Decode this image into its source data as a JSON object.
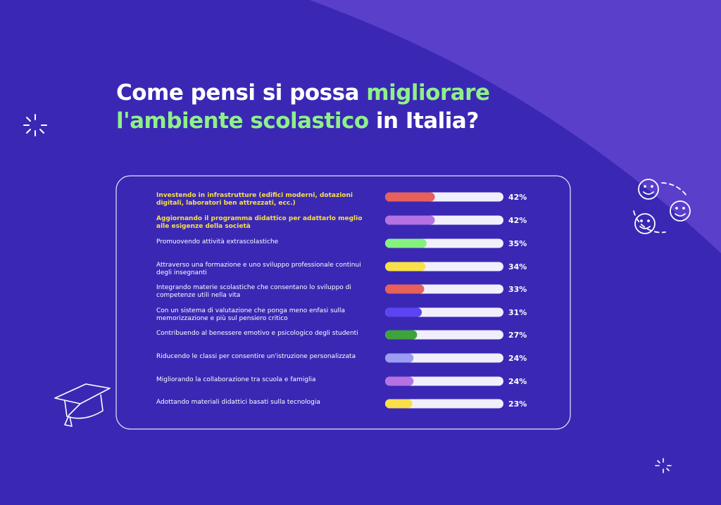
{
  "chart_data": {
    "type": "bar",
    "orientation": "horizontal",
    "title_parts": [
      {
        "text": "Come pensi si possa ",
        "color": "#ffffff"
      },
      {
        "text": "migliorare",
        "color": "#8ff08a"
      },
      {
        "text": "l'ambiente scolastico",
        "color": "#8ff08a"
      },
      {
        "text": " in Italia?",
        "color": "#ffffff"
      }
    ],
    "categories": [
      "Investendo in infrastrutture (edifici moderni, dotazioni digitali, laboratori ben attrezzati, ecc.)",
      "Aggiornando il programma didattico per adattarlo meglio alle esigenze della società",
      "Promuovendo attività extrascolastiche",
      "Attraverso una formazione e uno sviluppo professionale continui degli insegnanti",
      "Integrando materie scolastiche che consentano lo sviluppo di competenze utili nella vita",
      "Con un sistema di valutazione che ponga meno enfasi sulla memorizzazione e più sul pensiero critico",
      "Contribuendo al benessere emotivo e psicologico degli studenti",
      "Riducendo le classi per consentire un'istruzione personalizzata",
      "Migliorando la collaborazione tra scuola e famiglia",
      "Adottando materiali didattici basati sulla tecnologia"
    ],
    "values": [
      42,
      42,
      35,
      34,
      33,
      31,
      27,
      24,
      24,
      23
    ],
    "value_labels": [
      "42%",
      "42%",
      "35%",
      "34%",
      "33%",
      "31%",
      "27%",
      "24%",
      "24%",
      "23%"
    ],
    "colors": [
      "#e8605a",
      "#b672e2",
      "#86f080",
      "#f7e04a",
      "#e8605a",
      "#5b45f2",
      "#3fa33c",
      "#9c9cf2",
      "#b672e2",
      "#f7e04a"
    ],
    "label_colors": [
      "#f7e04a",
      "#f7e04a",
      "#ffffff",
      "#ffffff",
      "#ffffff",
      "#ffffff",
      "#ffffff",
      "#ffffff",
      "#ffffff",
      "#ffffff"
    ],
    "xlim": [
      0,
      100
    ]
  }
}
